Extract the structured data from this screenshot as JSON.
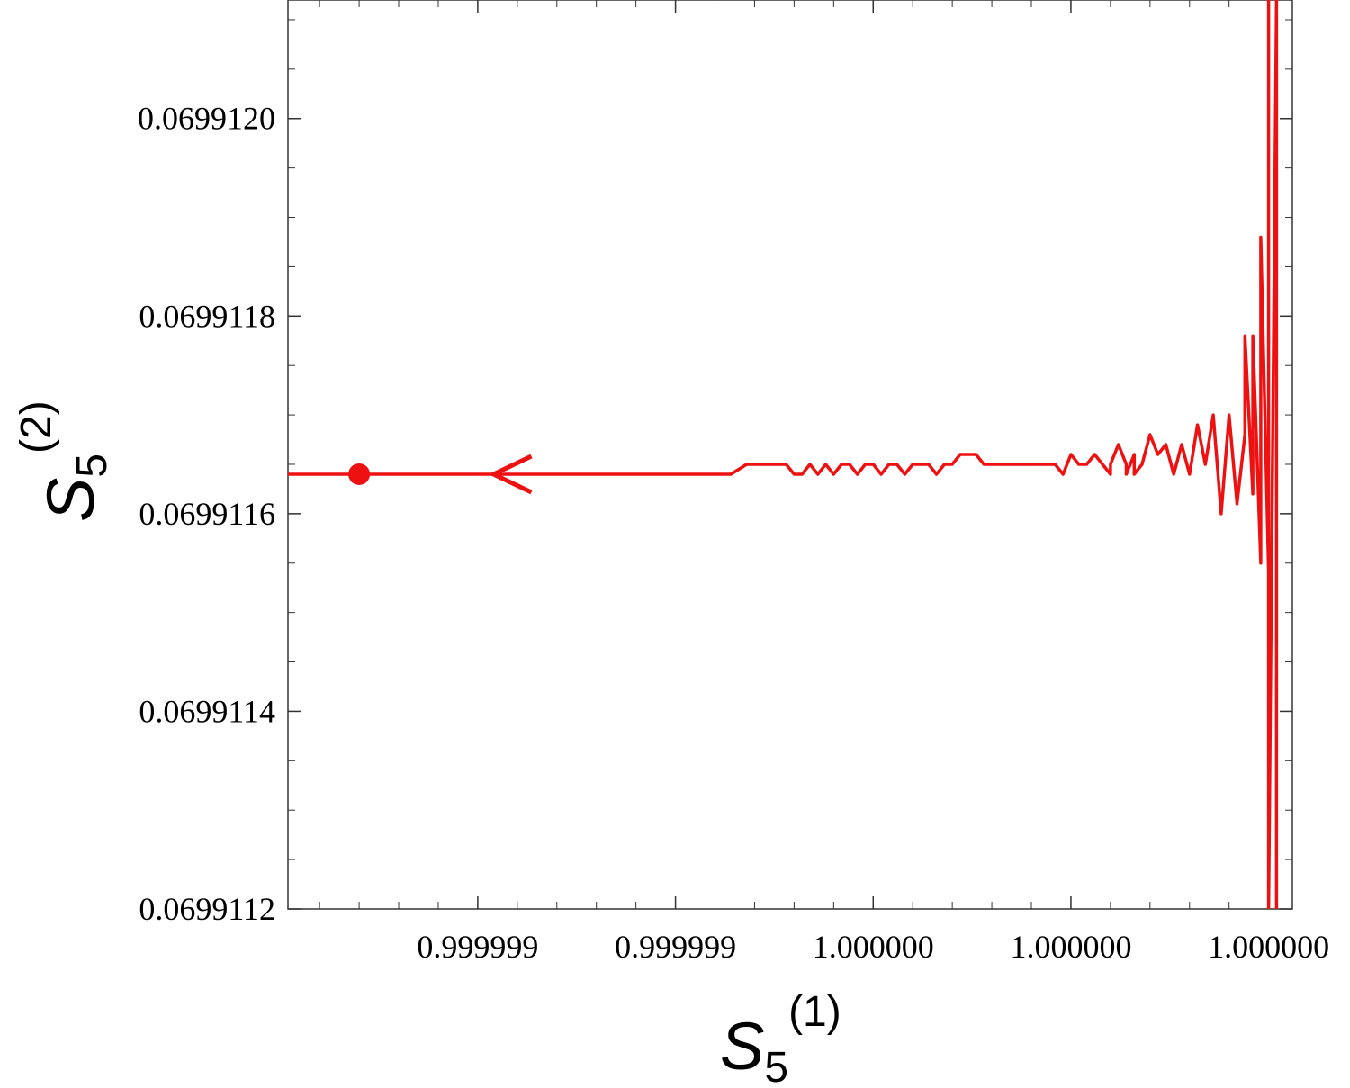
{
  "chart_data": {
    "type": "line",
    "title": "",
    "xlabel": {
      "base": "S",
      "sub": "5",
      "sup": "(1)"
    },
    "ylabel": {
      "base": "S",
      "sub": "5",
      "sup": "(2)"
    },
    "xlim": [
      0.99999895,
      1.00000022
    ],
    "ylim": [
      0.0699112,
      0.06991212
    ],
    "grid": false,
    "x_ticks": [
      {
        "value": 0.99999919,
        "label": "0.999999"
      },
      {
        "value": 0.99999944,
        "label": "0.999999"
      },
      {
        "value": 0.99999969,
        "label": "1.000000"
      },
      {
        "value": 0.99999994,
        "label": "1.000000"
      },
      {
        "value": 1.00000019,
        "label": "1.000000"
      }
    ],
    "y_ticks": [
      {
        "value": 0.0699112,
        "label": "0.0699112"
      },
      {
        "value": 0.0699114,
        "label": "0.0699114"
      },
      {
        "value": 0.0699116,
        "label": "0.0699116"
      },
      {
        "value": 0.0699118,
        "label": "0.0699118"
      },
      {
        "value": 0.069912,
        "label": "0.0699120"
      }
    ],
    "series": [
      {
        "color": "#ee1111",
        "x": [
          0.99999895,
          0.99999906,
          0.99999913,
          0.99999918,
          0.99999923,
          0.99999926,
          0.99999927,
          0.99999928,
          0.99999929,
          0.9999993,
          0.99999931,
          0.99999932,
          0.99999934,
          0.99999937,
          0.9999994,
          0.99999943,
          0.99999945,
          0.99999946,
          0.99999947,
          0.99999948,
          0.99999949,
          0.9999995,
          0.99999951,
          0.99999953,
          0.99999956,
          0.99999958,
          0.99999959,
          0.9999996,
          0.99999961,
          0.99999962,
          0.99999963,
          0.99999964,
          0.99999965,
          0.99999966,
          0.99999967,
          0.99999968,
          0.99999969,
          0.9999997,
          0.99999971,
          0.99999972,
          0.99999973,
          0.99999974,
          0.99999975,
          0.99999976,
          0.99999977,
          0.99999978,
          0.99999979,
          0.9999998,
          0.99999981,
          0.99999982,
          0.99999983,
          0.99999984,
          0.99999985,
          0.99999986,
          0.99999987,
          0.99999988,
          0.9999999,
          0.99999992,
          0.99999993,
          0.99999994,
          0.99999995,
          0.99999996,
          0.99999997,
          0.99999998,
          0.99999999,
          0.99999999,
          1.0,
          1.0,
          1.00000001,
          1.00000001,
          1.00000002,
          1.00000002,
          1.00000003,
          1.00000004,
          1.00000005,
          1.00000006,
          1.00000007,
          1.00000008,
          1.00000009,
          1.0000001,
          1.00000011,
          1.00000012,
          1.00000013,
          1.00000014,
          1.00000015,
          1.00000016,
          1.00000016,
          1.00000017,
          1.00000017,
          1.00000018,
          1.00000018,
          1.00000019,
          1.00000019,
          1.00000019,
          1.0000002,
          1.0000002,
          1.0000002,
          1.0000002
        ],
        "y": [
          0.06991164,
          0.06991164,
          0.06991164,
          0.06991164,
          0.06991164,
          0.06991164,
          0.06991164,
          0.06991164,
          0.06991164,
          0.06991164,
          0.06991164,
          0.06991164,
          0.06991164,
          0.06991164,
          0.06991164,
          0.06991164,
          0.06991164,
          0.06991164,
          0.06991164,
          0.06991164,
          0.06991164,
          0.06991164,
          0.06991164,
          0.06991165,
          0.06991165,
          0.06991165,
          0.06991164,
          0.06991164,
          0.06991165,
          0.06991164,
          0.06991165,
          0.06991164,
          0.06991165,
          0.06991165,
          0.06991164,
          0.06991165,
          0.06991165,
          0.06991164,
          0.06991165,
          0.06991165,
          0.06991164,
          0.06991165,
          0.06991165,
          0.06991165,
          0.06991164,
          0.06991165,
          0.06991165,
          0.06991166,
          0.06991166,
          0.06991166,
          0.06991165,
          0.06991165,
          0.06991165,
          0.06991165,
          0.06991165,
          0.06991165,
          0.06991165,
          0.06991165,
          0.06991164,
          0.06991166,
          0.06991165,
          0.06991165,
          0.06991166,
          0.06991165,
          0.06991164,
          0.06991165,
          0.06991167,
          0.06991167,
          0.06991165,
          0.06991164,
          0.06991166,
          0.06991164,
          0.06991165,
          0.06991168,
          0.06991166,
          0.06991167,
          0.06991164,
          0.06991167,
          0.06991164,
          0.06991169,
          0.06991165,
          0.0699117,
          0.0699116,
          0.0699117,
          0.06991161,
          0.06991168,
          0.06991178,
          0.06991162,
          0.06991178,
          0.06991155,
          0.06991188,
          0.06991154,
          0.06991212,
          0.0699112,
          0.06991212,
          0.0699112,
          0.06991212,
          0.0699112
        ],
        "start_marker": {
          "x": 0.99999904,
          "y": 0.06991164
        },
        "arrow": {
          "x": 0.99999921,
          "y": 0.06991164,
          "direction": "left"
        }
      }
    ]
  }
}
